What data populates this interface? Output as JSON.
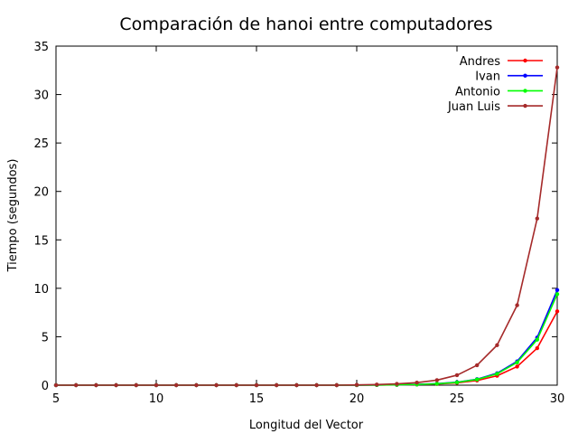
{
  "chart_data": {
    "type": "line",
    "title": "Comparación de hanoi entre computadores",
    "xlabel": "Longitud del Vector",
    "ylabel": "Tiempo (segundos)",
    "xlim": [
      5,
      30
    ],
    "ylim": [
      0,
      35
    ],
    "xticks": [
      "5",
      "10",
      "15",
      "20",
      "25",
      "30"
    ],
    "yticks": [
      "0",
      "5",
      "10",
      "15",
      "20",
      "25",
      "30",
      "35"
    ],
    "grid": false,
    "legend_position": "top-right",
    "x": [
      5,
      6,
      7,
      8,
      9,
      10,
      11,
      12,
      13,
      14,
      15,
      16,
      17,
      18,
      19,
      20,
      21,
      22,
      23,
      24,
      25,
      26,
      27,
      28,
      29,
      30
    ],
    "series": [
      {
        "name": "Andres",
        "color": "#ff0000",
        "values": [
          0,
          0,
          0,
          0,
          0,
          0,
          0,
          0,
          0,
          0,
          0,
          0,
          0,
          0,
          0,
          0.01,
          0.02,
          0.03,
          0.06,
          0.12,
          0.24,
          0.48,
          0.97,
          1.92,
          3.82,
          7.62
        ]
      },
      {
        "name": "Ivan",
        "color": "#0000ff",
        "values": [
          0,
          0,
          0,
          0,
          0,
          0,
          0,
          0,
          0,
          0,
          0,
          0,
          0,
          0,
          0,
          0.01,
          0.02,
          0.04,
          0.08,
          0.16,
          0.31,
          0.62,
          1.23,
          2.46,
          4.92,
          9.82
        ]
      },
      {
        "name": "Antonio",
        "color": "#00ff00",
        "values": [
          0,
          0,
          0,
          0,
          0,
          0,
          0,
          0,
          0,
          0,
          0,
          0,
          0,
          0,
          0,
          0.01,
          0.02,
          0.04,
          0.07,
          0.15,
          0.29,
          0.59,
          1.17,
          2.35,
          4.7,
          9.4
        ]
      },
      {
        "name": "Juan Luis",
        "color": "#a52a2a",
        "values": [
          0,
          0,
          0,
          0,
          0,
          0,
          0,
          0,
          0,
          0,
          0,
          0,
          0,
          0,
          0,
          0.03,
          0.06,
          0.13,
          0.26,
          0.52,
          1.03,
          2.06,
          4.13,
          8.25,
          17.2,
          32.8
        ]
      }
    ]
  }
}
